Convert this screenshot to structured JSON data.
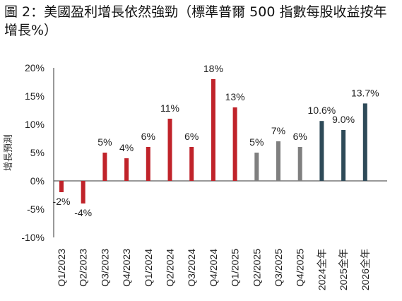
{
  "title": "圖 2：美國盈利增長依然強勁（標準普爾 500 指數每股收益按年增長%）",
  "chart_data": {
    "type": "bar",
    "title": "圖 2：美國盈利增長依然強勁（標準普爾 500 指數每股收益按年增長%）",
    "xlabel": "",
    "ylabel": "增長預測",
    "ylim": [
      -10,
      20
    ],
    "yticks": [
      "-10%",
      "-5%",
      "0%",
      "5%",
      "10%",
      "15%",
      "20%"
    ],
    "grid": false,
    "legend": "none",
    "categories": [
      "Q1/2023",
      "Q2/2023",
      "Q3/2023",
      "Q4/2023",
      "Q1/2024",
      "Q2/2024",
      "Q3/2024",
      "Q4/2024",
      "Q1/2025",
      "Q2/2025",
      "Q3/2025",
      "Q4/2025",
      "2024全年",
      "2025全年",
      "2026全年"
    ],
    "values": [
      -2,
      -4,
      5,
      4,
      6,
      11,
      6,
      18,
      13,
      5,
      7,
      6,
      10.6,
      9.0,
      13.7
    ],
    "data_labels": [
      "-2%",
      "-4%",
      "5%",
      "4%",
      "6%",
      "11%",
      "6%",
      "18%",
      "13%",
      "5%",
      "7%",
      "6%",
      "10.6%",
      "9.0%",
      "13.7%"
    ],
    "colors": [
      "#c0232a",
      "#c0232a",
      "#c0232a",
      "#c0232a",
      "#c0232a",
      "#c0232a",
      "#c0232a",
      "#c0232a",
      "#c0232a",
      "#7f7f7f",
      "#7f7f7f",
      "#7f7f7f",
      "#2e4a58",
      "#2e4a58",
      "#2e4a58"
    ]
  }
}
